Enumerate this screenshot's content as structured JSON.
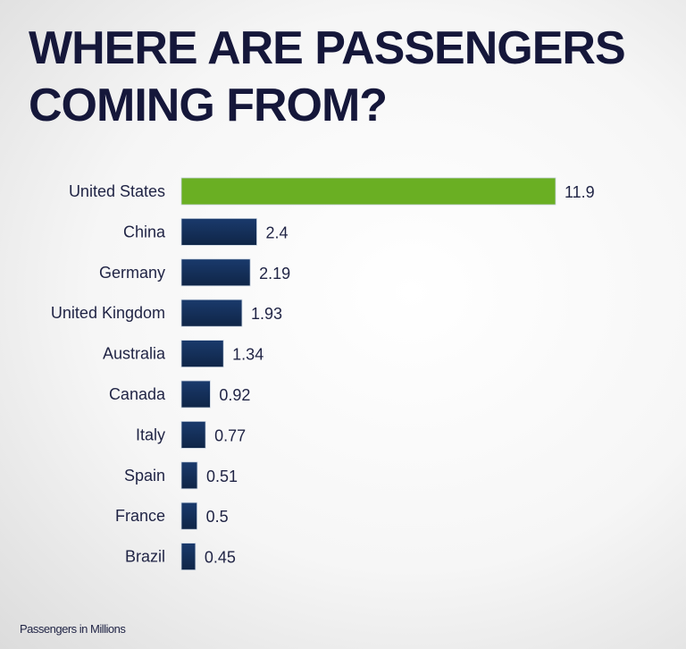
{
  "chart_data": {
    "type": "bar",
    "orientation": "horizontal",
    "title": "WHERE ARE PASSENGERS COMING FROM?",
    "categories": [
      "United States",
      "China",
      "Germany",
      "United Kingdom",
      "Australia",
      "Canada",
      "Italy",
      "Spain",
      "France",
      "Brazil"
    ],
    "values": [
      11.9,
      2.4,
      2.19,
      1.93,
      1.34,
      0.92,
      0.77,
      0.51,
      0.5,
      0.45
    ],
    "data_labels": [
      "11.9",
      "2.4",
      "2.19",
      "1.93",
      "1.34",
      "0.92",
      "0.77",
      "0.51",
      "0.5",
      "0.45"
    ],
    "xlim": [
      0,
      11.9
    ],
    "grid": false,
    "highlight_color": "#6aaf23",
    "bar_color": "#14305c",
    "note": "Passengers in Millions"
  }
}
